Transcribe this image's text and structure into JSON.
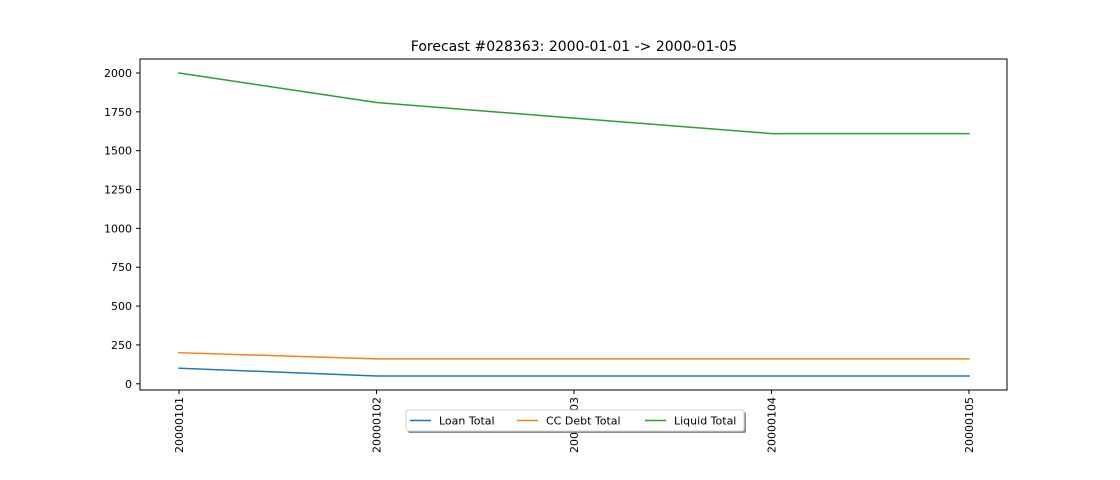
{
  "chart_data": {
    "type": "line",
    "title": "Forecast #028363: 2000-01-01 -> 2000-01-05",
    "xlabel": "",
    "ylabel": "",
    "categories": [
      "20000101",
      "20000102",
      "20000103",
      "20000104",
      "20000105"
    ],
    "x_tick_labels": [
      "20000101",
      "20000102",
      "20000103",
      "20000104",
      "20000105"
    ],
    "y_ticks": [
      0,
      250,
      500,
      750,
      1000,
      1250,
      1500,
      1750,
      2000
    ],
    "y_tick_labels": [
      "0",
      "250",
      "500",
      "750",
      "1000",
      "1250",
      "1500",
      "1750",
      "2000"
    ],
    "ylim": [
      -40,
      2090
    ],
    "grid": false,
    "legend_position": "bottom-center",
    "series": [
      {
        "name": "Loan Total",
        "color": "#1f77b4",
        "values": [
          100,
          50,
          50,
          50,
          50
        ]
      },
      {
        "name": "CC Debt Total",
        "color": "#ff7f0e",
        "values": [
          200,
          160,
          160,
          160,
          160
        ]
      },
      {
        "name": "Liquid Total",
        "color": "#2ca02c",
        "values": [
          2000,
          1810,
          1710,
          1610,
          1610
        ]
      }
    ]
  }
}
